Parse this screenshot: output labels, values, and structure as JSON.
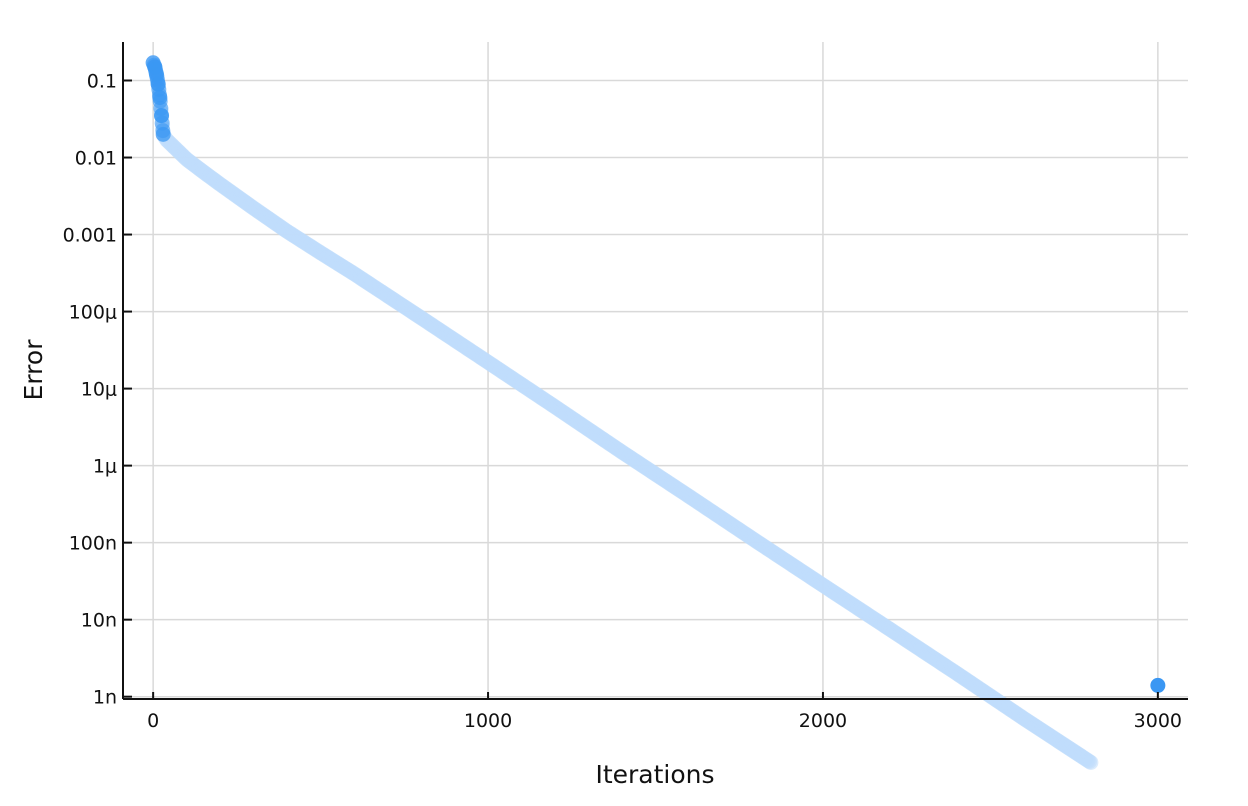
{
  "chart_data": {
    "type": "scatter",
    "title": "",
    "xlabel": "Iterations",
    "ylabel": "Error",
    "x_range": [
      -90,
      3090
    ],
    "y_range_log10": [
      -9.03,
      -0.5
    ],
    "y_scale": "log",
    "grid": true,
    "legend": "none",
    "x_ticks": [
      {
        "value": 0,
        "label": "0"
      },
      {
        "value": 1000,
        "label": "1000"
      },
      {
        "value": 2000,
        "label": "2000"
      },
      {
        "value": 3000,
        "label": "3000"
      }
    ],
    "y_ticks": [
      {
        "value": 0.1,
        "label": "0.1"
      },
      {
        "value": 0.01,
        "label": "0.01"
      },
      {
        "value": 0.001,
        "label": "0.001"
      },
      {
        "value": 0.0001,
        "label": "100μ"
      },
      {
        "value": 1e-05,
        "label": "10μ"
      },
      {
        "value": 1e-06,
        "label": "1μ"
      },
      {
        "value": 1e-07,
        "label": "100n"
      },
      {
        "value": 1e-08,
        "label": "10n"
      },
      {
        "value": 1e-09,
        "label": "1n"
      }
    ],
    "series": [
      {
        "marker_color": "#3a97f3",
        "faded_color": "#bfdcfb",
        "x": [
          0,
          5,
          10,
          15,
          20,
          25,
          30,
          40,
          60,
          100,
          150,
          200,
          300,
          400,
          500,
          600,
          800,
          1000,
          1200,
          1400,
          1600,
          1800,
          2000,
          2200,
          2400,
          2600,
          2800,
          3000
        ],
        "y": [
          0.17,
          0.15,
          0.12,
          0.09,
          0.06,
          0.035,
          0.02,
          0.017,
          0.014,
          0.0095,
          0.0065,
          0.0045,
          0.0022,
          0.0011,
          0.00058,
          0.00031,
          8.3e-05,
          2.2e-05,
          5.8e-06,
          1.5e-06,
          4e-07,
          1.05e-07,
          2.8e-08,
          7.5e-09,
          2e-09,
          5.2e-10,
          1.4e-10,
          1.4e-09
        ]
      }
    ]
  }
}
